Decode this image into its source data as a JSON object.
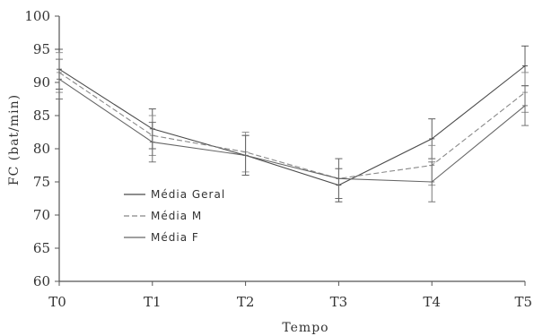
{
  "chart_data": {
    "type": "line",
    "xlabel": "Tempo",
    "ylabel": "FC (bat/min)",
    "categories": [
      "T0",
      "T1",
      "T2",
      "T3",
      "T4",
      "T5"
    ],
    "ylim": [
      60,
      100
    ],
    "yticks": [
      60,
      65,
      70,
      75,
      80,
      85,
      90,
      95,
      100
    ],
    "grid": false,
    "legend_position": "center-left",
    "series": [
      {
        "name": "Média Geral",
        "values": [
          92,
          83,
          79,
          74.5,
          81.5,
          92.5
        ],
        "errors": [
          3,
          3,
          3,
          2.5,
          3,
          3
        ],
        "color": "#4a4a4a",
        "dash": "solid"
      },
      {
        "name": "Média M",
        "values": [
          91.5,
          82,
          79.5,
          75.5,
          77.5,
          88.5
        ],
        "errors": [
          3,
          3,
          3,
          3,
          3,
          3
        ],
        "color": "#888888",
        "dash": "dashed"
      },
      {
        "name": "Média F",
        "values": [
          90.5,
          81,
          79,
          75.5,
          75,
          86.5
        ],
        "errors": [
          3,
          3,
          3,
          3,
          3,
          3
        ],
        "color": "#666666",
        "dash": "solid"
      }
    ]
  }
}
